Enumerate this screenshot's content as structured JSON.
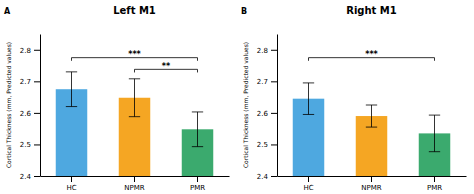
{
  "chart_data": [
    {
      "type": "bar",
      "title": "Left M1",
      "panel_label": "A",
      "ylabel": "Cortical Thickness (mm, Predicted values)",
      "categories": [
        "HC",
        "NPMR",
        "PMR"
      ],
      "values": [
        2.675,
        2.648,
        2.548
      ],
      "errors": [
        0.055,
        0.06,
        0.055
      ],
      "colors": [
        "#4EA8E0",
        "#F5A623",
        "#3BAA6E"
      ],
      "ylim": [
        2.4,
        2.85
      ],
      "yticks": [
        2.4,
        2.5,
        2.6,
        2.7,
        2.8
      ],
      "grid": false,
      "annotations": [
        {
          "from": "HC",
          "to": "PMR",
          "y": 2.775,
          "label": "***"
        },
        {
          "from": "NPMR",
          "to": "PMR",
          "y": 2.738,
          "label": "**"
        }
      ]
    },
    {
      "type": "bar",
      "title": "Right M1",
      "panel_label": "B",
      "ylabel": "Cortical Thickness (mm, Predicted values)",
      "categories": [
        "HC",
        "NPMR",
        "PMR"
      ],
      "values": [
        2.645,
        2.59,
        2.535
      ],
      "errors": [
        0.05,
        0.035,
        0.058
      ],
      "colors": [
        "#4EA8E0",
        "#F5A623",
        "#3BAA6E"
      ],
      "ylim": [
        2.4,
        2.85
      ],
      "yticks": [
        2.4,
        2.5,
        2.6,
        2.7,
        2.8
      ],
      "grid": false,
      "annotations": [
        {
          "from": "HC",
          "to": "PMR",
          "y": 2.775,
          "label": "***"
        }
      ]
    }
  ]
}
